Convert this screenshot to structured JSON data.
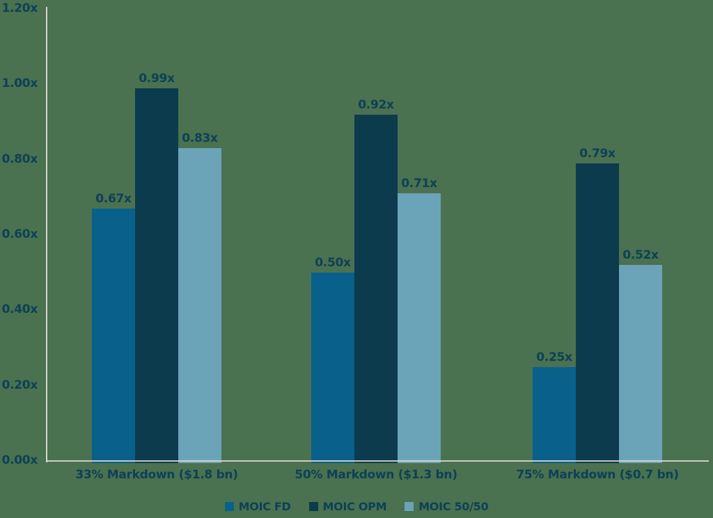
{
  "colors": {
    "background": "#4a7150",
    "axis_line": "#d8d7cf",
    "text": "#0d4156",
    "series_fd": "#09608b",
    "series_opm": "#0b3b4d",
    "series_5050": "#6ba3b9"
  },
  "chart_data": {
    "type": "bar",
    "title": "",
    "xlabel": "",
    "ylabel": "",
    "value_suffix": "x",
    "ylim": [
      0,
      1.2
    ],
    "grid": false,
    "legend_position": "bottom",
    "categories": [
      "33% Markdown ($1.8 bn)",
      "50% Markdown ($1.3 bn)",
      "75% Markdown ($0.7 bn)"
    ],
    "series": [
      {
        "name": "MOIC FD",
        "color": "#09608b",
        "values": [
          0.67,
          0.5,
          0.25
        ],
        "labels": [
          "0.67x",
          "0.50x",
          "0.25x"
        ]
      },
      {
        "name": "MOIC OPM",
        "color": "#0b3b4d",
        "values": [
          0.99,
          0.92,
          0.79
        ],
        "labels": [
          "0.99x",
          "0.92x",
          "0.79x"
        ]
      },
      {
        "name": "MOIC 50/50",
        "color": "#6ba3b9",
        "values": [
          0.83,
          0.71,
          0.52
        ],
        "labels": [
          "0.83x",
          "0.71x",
          "0.52x"
        ]
      }
    ],
    "yticks": [
      {
        "value": 0.0,
        "label": "0.00x"
      },
      {
        "value": 0.2,
        "label": "0.20x"
      },
      {
        "value": 0.4,
        "label": "0.40x"
      },
      {
        "value": 0.6,
        "label": "0.60x"
      },
      {
        "value": 0.8,
        "label": "0.80x"
      },
      {
        "value": 1.0,
        "label": "1.00x"
      },
      {
        "value": 1.2,
        "label": "1.20x"
      }
    ]
  }
}
